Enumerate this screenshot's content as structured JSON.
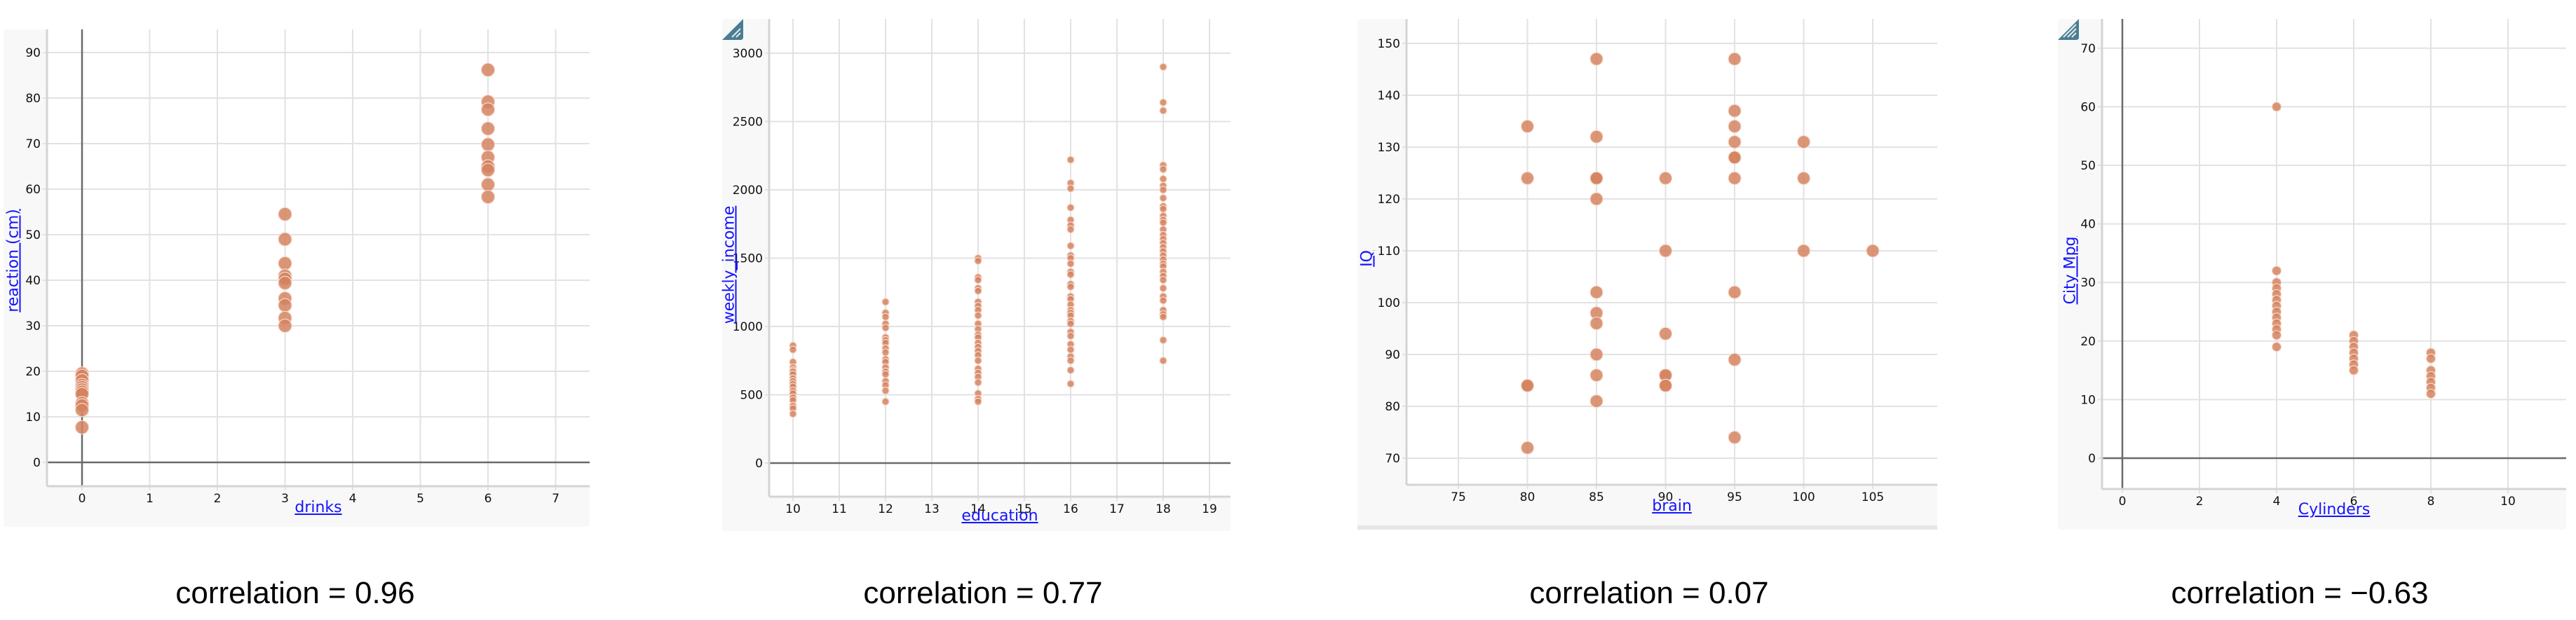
{
  "colors": {
    "dot": "#d5825f",
    "axis_title": "#1414ff",
    "resize_handle": "#4a7d91",
    "panel_bg": "#f8f8f8"
  },
  "captions": [
    "correlation = 0.96",
    "correlation = 0.77",
    "correlation = 0.07",
    "correlation = −0.63"
  ],
  "chart_data": [
    {
      "type": "scatter",
      "title": "",
      "xlabel": "drinks",
      "ylabel": "reaction (cm)",
      "caption": "correlation = 0.96",
      "correlation": 0.96,
      "xlim": [
        -0.5,
        7.5
      ],
      "ylim": [
        -5,
        95
      ],
      "xticks": [
        0,
        1,
        2,
        3,
        4,
        5,
        6,
        7
      ],
      "yticks": [
        0,
        10,
        20,
        30,
        40,
        50,
        60,
        70,
        80,
        90
      ],
      "grid": true,
      "show_zero_x": true,
      "show_zero_y": true,
      "dot_radius": 9.5,
      "resize_handle": false,
      "points": [
        [
          0,
          19.5
        ],
        [
          0,
          19
        ],
        [
          0,
          18
        ],
        [
          0,
          17
        ],
        [
          0,
          16.5
        ],
        [
          0,
          16
        ],
        [
          0,
          15.5
        ],
        [
          0,
          15
        ],
        [
          0,
          13
        ],
        [
          0,
          12.5
        ],
        [
          0,
          11.5
        ],
        [
          0,
          7.7
        ],
        [
          3,
          54.5
        ],
        [
          3,
          49
        ],
        [
          3,
          43.7
        ],
        [
          3,
          41
        ],
        [
          3,
          40.3
        ],
        [
          3,
          39.4
        ],
        [
          3,
          36
        ],
        [
          3,
          34.5
        ],
        [
          3,
          31.7
        ],
        [
          3,
          30
        ],
        [
          6,
          86.2
        ],
        [
          6,
          79.2
        ],
        [
          6,
          77.5
        ],
        [
          6,
          73.3
        ],
        [
          6,
          69.8
        ],
        [
          6,
          67
        ],
        [
          6,
          65
        ],
        [
          6,
          64.2
        ],
        [
          6,
          61
        ],
        [
          6,
          58.3
        ]
      ]
    },
    {
      "type": "scatter",
      "title": "",
      "xlabel": "education",
      "ylabel": "weekly_income",
      "caption": "correlation = 0.77",
      "correlation": 0.77,
      "xlim": [
        9.5,
        19.5
      ],
      "ylim": [
        -250,
        3200
      ],
      "xticks": [
        10,
        11,
        12,
        13,
        14,
        15,
        16,
        17,
        18,
        19
      ],
      "yticks": [
        0,
        500,
        1000,
        1500,
        2000,
        2500,
        3000
      ],
      "grid": true,
      "show_zero_x": false,
      "show_zero_y": true,
      "dot_radius": 5,
      "resize_handle": true,
      "points": [
        [
          10,
          860
        ],
        [
          10,
          830
        ],
        [
          10,
          740
        ],
        [
          10,
          700
        ],
        [
          10,
          680
        ],
        [
          10,
          670
        ],
        [
          10,
          650
        ],
        [
          10,
          620
        ],
        [
          10,
          600
        ],
        [
          10,
          580
        ],
        [
          10,
          560
        ],
        [
          10,
          530
        ],
        [
          10,
          510
        ],
        [
          10,
          480
        ],
        [
          10,
          460
        ],
        [
          10,
          420
        ],
        [
          10,
          400
        ],
        [
          10,
          360
        ],
        [
          12,
          1180
        ],
        [
          12,
          1100
        ],
        [
          12,
          1070
        ],
        [
          12,
          1020
        ],
        [
          12,
          990
        ],
        [
          12,
          920
        ],
        [
          12,
          900
        ],
        [
          12,
          880
        ],
        [
          12,
          840
        ],
        [
          12,
          810
        ],
        [
          12,
          760
        ],
        [
          12,
          740
        ],
        [
          12,
          700
        ],
        [
          12,
          670
        ],
        [
          12,
          650
        ],
        [
          12,
          600
        ],
        [
          12,
          570
        ],
        [
          12,
          530
        ],
        [
          12,
          450
        ],
        [
          14,
          1500
        ],
        [
          14,
          1480
        ],
        [
          14,
          1360
        ],
        [
          14,
          1340
        ],
        [
          14,
          1280
        ],
        [
          14,
          1260
        ],
        [
          14,
          1180
        ],
        [
          14,
          1150
        ],
        [
          14,
          1120
        ],
        [
          14,
          1080
        ],
        [
          14,
          1020
        ],
        [
          14,
          980
        ],
        [
          14,
          940
        ],
        [
          14,
          920
        ],
        [
          14,
          880
        ],
        [
          14,
          850
        ],
        [
          14,
          820
        ],
        [
          14,
          790
        ],
        [
          14,
          750
        ],
        [
          14,
          690
        ],
        [
          14,
          660
        ],
        [
          14,
          630
        ],
        [
          14,
          590
        ],
        [
          14,
          510
        ],
        [
          14,
          470
        ],
        [
          14,
          450
        ],
        [
          16,
          2220
        ],
        [
          16,
          2050
        ],
        [
          16,
          2010
        ],
        [
          16,
          1870
        ],
        [
          16,
          1780
        ],
        [
          16,
          1740
        ],
        [
          16,
          1710
        ],
        [
          16,
          1590
        ],
        [
          16,
          1520
        ],
        [
          16,
          1500
        ],
        [
          16,
          1460
        ],
        [
          16,
          1400
        ],
        [
          16,
          1380
        ],
        [
          16,
          1310
        ],
        [
          16,
          1290
        ],
        [
          16,
          1220
        ],
        [
          16,
          1200
        ],
        [
          16,
          1160
        ],
        [
          16,
          1120
        ],
        [
          16,
          1100
        ],
        [
          16,
          1080
        ],
        [
          16,
          1040
        ],
        [
          16,
          1020
        ],
        [
          16,
          960
        ],
        [
          16,
          930
        ],
        [
          16,
          870
        ],
        [
          16,
          830
        ],
        [
          16,
          780
        ],
        [
          16,
          750
        ],
        [
          16,
          680
        ],
        [
          16,
          580
        ],
        [
          18,
          2900
        ],
        [
          18,
          2640
        ],
        [
          18,
          2580
        ],
        [
          18,
          2180
        ],
        [
          18,
          2150
        ],
        [
          18,
          2080
        ],
        [
          18,
          2030
        ],
        [
          18,
          2000
        ],
        [
          18,
          1940
        ],
        [
          18,
          1880
        ],
        [
          18,
          1860
        ],
        [
          18,
          1810
        ],
        [
          18,
          1780
        ],
        [
          18,
          1760
        ],
        [
          18,
          1710
        ],
        [
          18,
          1670
        ],
        [
          18,
          1640
        ],
        [
          18,
          1610
        ],
        [
          18,
          1580
        ],
        [
          18,
          1550
        ],
        [
          18,
          1520
        ],
        [
          18,
          1490
        ],
        [
          18,
          1460
        ],
        [
          18,
          1440
        ],
        [
          18,
          1400
        ],
        [
          18,
          1370
        ],
        [
          18,
          1340
        ],
        [
          18,
          1280
        ],
        [
          18,
          1220
        ],
        [
          18,
          1190
        ],
        [
          18,
          1120
        ],
        [
          18,
          1090
        ],
        [
          18,
          1070
        ],
        [
          18,
          900
        ],
        [
          18,
          750
        ]
      ]
    },
    {
      "type": "scatter",
      "title": "",
      "xlabel": "brain",
      "ylabel": "IQ",
      "caption": "correlation = 0.07",
      "correlation": 0.07,
      "xlim": [
        71.3,
        109.6
      ],
      "ylim": [
        64.7,
        155.5
      ],
      "xticks": [
        75,
        80,
        85,
        90,
        95,
        100,
        105
      ],
      "yticks": [
        70,
        80,
        90,
        100,
        110,
        120,
        130,
        140,
        150
      ],
      "grid": true,
      "show_zero_x": false,
      "show_zero_y": false,
      "dot_radius": 9,
      "resize_handle": false,
      "points": [
        [
          80,
          134
        ],
        [
          80,
          124
        ],
        [
          80,
          84
        ],
        [
          80,
          84
        ],
        [
          80,
          72
        ],
        [
          85,
          147
        ],
        [
          85,
          132
        ],
        [
          85,
          124
        ],
        [
          85,
          124
        ],
        [
          85,
          120
        ],
        [
          85,
          102
        ],
        [
          85,
          98
        ],
        [
          85,
          96
        ],
        [
          85,
          90
        ],
        [
          85,
          86
        ],
        [
          85,
          81
        ],
        [
          90,
          124
        ],
        [
          90,
          110
        ],
        [
          90,
          94
        ],
        [
          90,
          86
        ],
        [
          90,
          86
        ],
        [
          90,
          84
        ],
        [
          90,
          84
        ],
        [
          95,
          147
        ],
        [
          95,
          137
        ],
        [
          95,
          134
        ],
        [
          95,
          131
        ],
        [
          95,
          128
        ],
        [
          95,
          128
        ],
        [
          95,
          124
        ],
        [
          95,
          102
        ],
        [
          95,
          89
        ],
        [
          95,
          74
        ],
        [
          100,
          131
        ],
        [
          100,
          124
        ],
        [
          100,
          110
        ],
        [
          105,
          110
        ]
      ]
    },
    {
      "type": "scatter",
      "title": "",
      "xlabel": "Cylinders",
      "ylabel": "City Mpg",
      "caption": "correlation = −0.63",
      "correlation": -0.63,
      "xlim": [
        -0.55,
        11.7
      ],
      "ylim": [
        -5,
        75
      ],
      "xticks": [
        0,
        2,
        4,
        6,
        8,
        10
      ],
      "yticks": [
        0,
        10,
        20,
        30,
        40,
        50,
        60,
        70
      ],
      "grid": true,
      "show_zero_x": true,
      "show_zero_y": true,
      "dot_radius": 6.5,
      "resize_handle": true,
      "points": [
        [
          4,
          60
        ],
        [
          4,
          32
        ],
        [
          4,
          30
        ],
        [
          4,
          29
        ],
        [
          4,
          28
        ],
        [
          4,
          27
        ],
        [
          4,
          26
        ],
        [
          4,
          25
        ],
        [
          4,
          24
        ],
        [
          4,
          23
        ],
        [
          4,
          22
        ],
        [
          4,
          21
        ],
        [
          4,
          19
        ],
        [
          6,
          21
        ],
        [
          6,
          20
        ],
        [
          6,
          19
        ],
        [
          6,
          18
        ],
        [
          6,
          17
        ],
        [
          6,
          16
        ],
        [
          6,
          15
        ],
        [
          8,
          18
        ],
        [
          8,
          17
        ],
        [
          8,
          15
        ],
        [
          8,
          14
        ],
        [
          8,
          13
        ],
        [
          8,
          12
        ],
        [
          8,
          11
        ]
      ]
    }
  ]
}
